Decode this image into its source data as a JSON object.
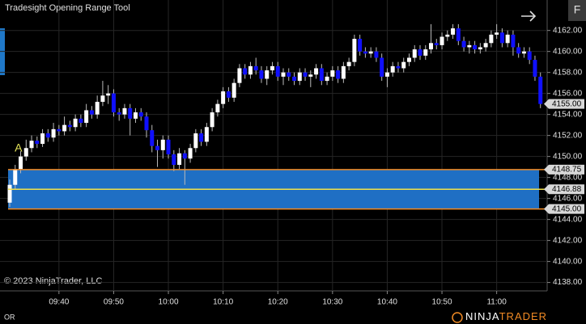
{
  "chart_data": {
    "type": "candlestick",
    "title": "Tradesight Opening Range Tool",
    "copyright": "© 2023 NinjaTrader, LLC",
    "indicator_label": "OR",
    "button_label": "F",
    "logo": {
      "left": "NINJA",
      "right": "TRADER"
    },
    "annotation": "A",
    "up_color": "#ffffff",
    "down_color": "#1010ff",
    "grid": true,
    "categories": [
      null,
      null,
      null,
      null,
      null,
      null,
      null,
      null,
      null,
      "09:40",
      null,
      null,
      null,
      null,
      null,
      null,
      null,
      null,
      null,
      "09:50",
      null,
      null,
      null,
      null,
      null,
      null,
      null,
      null,
      null,
      "10:00",
      null,
      null,
      null,
      null,
      null,
      null,
      null,
      null,
      null,
      "10:10",
      null,
      null,
      null,
      null,
      null,
      null,
      null,
      null,
      null,
      "10:20",
      null,
      null,
      null,
      null,
      null,
      null,
      null,
      null,
      null,
      "10:30",
      null,
      null,
      null,
      null,
      null,
      null,
      null,
      null,
      null,
      "10:40",
      null,
      null,
      null,
      null,
      null,
      null,
      null,
      null,
      null,
      "10:50",
      null,
      null,
      null,
      null,
      null,
      null,
      null,
      null,
      null,
      "11:00",
      null,
      null,
      null,
      null,
      null,
      null,
      null,
      null
    ],
    "open": [
      4145.6,
      4147.3,
      4148.8,
      4150.0,
      4150.8,
      4151.5,
      4151.2,
      4152.2,
      4151.8,
      4152.6,
      4152.4,
      4153.0,
      4152.8,
      4153.6,
      4153.2,
      4154.4,
      4154.0,
      4155.2,
      4155.8,
      4156.0,
      4154.2,
      4154.0,
      4154.6,
      4153.6,
      4154.2,
      4153.8,
      4152.5,
      4151.0,
      4150.6,
      4151.6,
      4150.2,
      4149.2,
      4150.3,
      4149.8,
      4150.8,
      4152.2,
      4151.4,
      4152.8,
      4154.2,
      4155.0,
      4156.2,
      4155.6,
      4157.0,
      4158.4,
      4157.8,
      4158.6,
      4158.2,
      4157.4,
      4158.2,
      4158.6,
      4157.6,
      4158.0,
      4157.6,
      4157.2,
      4158.0,
      4157.6,
      4157.8,
      4158.4,
      4157.2,
      4157.6,
      4158.2,
      4157.4,
      4158.6,
      4159.0,
      4161.2,
      4160.0,
      4159.8,
      4160.0,
      4159.4,
      4157.6,
      4158.0,
      4158.6,
      4158.4,
      4159.0,
      4159.4,
      4160.2,
      4159.6,
      4160.2,
      4160.8,
      4160.6,
      4161.4,
      4161.6,
      4162.2,
      4161.0,
      4160.4,
      4160.6,
      4160.2,
      4160.4,
      4160.8,
      4161.6,
      4161.8,
      4160.8,
      4161.6,
      4160.4,
      4159.8,
      4160.0,
      4159.2,
      4157.6
    ],
    "high": [
      4147.8,
      4149.2,
      4150.5,
      4151.6,
      4152.0,
      4151.9,
      4152.6,
      4152.6,
      4153.2,
      4153.0,
      4153.8,
      4153.4,
      4154.0,
      4154.0,
      4155.0,
      4154.8,
      4155.8,
      4157.2,
      4156.8,
      4156.4,
      4154.6,
      4155.0,
      4155.0,
      4154.6,
      4154.6,
      4154.2,
      4153.0,
      4151.6,
      4152.0,
      4152.0,
      4150.6,
      4150.8,
      4150.6,
      4151.2,
      4152.6,
      4152.6,
      4153.2,
      4154.6,
      4155.4,
      4156.6,
      4156.6,
      4157.4,
      4158.8,
      4158.8,
      4159.0,
      4159.4,
      4158.6,
      4158.6,
      4159.0,
      4159.0,
      4158.4,
      4158.4,
      4158.0,
      4158.4,
      4158.4,
      4158.2,
      4158.8,
      4158.8,
      4158.0,
      4158.6,
      4158.6,
      4159.0,
      4159.4,
      4161.6,
      4161.6,
      4160.4,
      4160.4,
      4160.4,
      4159.8,
      4158.4,
      4159.0,
      4159.0,
      4159.4,
      4159.8,
      4160.6,
      4160.6,
      4160.6,
      4162.6,
      4161.2,
      4161.8,
      4162.0,
      4162.6,
      4162.6,
      4161.4,
      4161.0,
      4161.0,
      4160.8,
      4161.2,
      4162.0,
      4162.6,
      4162.2,
      4162.0,
      4162.0,
      4160.8,
      4160.4,
      4160.4,
      4159.6,
      4158.0
    ],
    "low": [
      4145.2,
      4146.9,
      4148.4,
      4149.6,
      4150.4,
      4150.8,
      4150.9,
      4151.4,
      4151.4,
      4152.0,
      4152.0,
      4152.4,
      4152.4,
      4152.8,
      4152.8,
      4153.6,
      4153.6,
      4154.8,
      4155.0,
      4153.8,
      4153.4,
      4153.6,
      4152.0,
      4153.2,
      4153.4,
      4151.8,
      4150.4,
      4149.0,
      4149.8,
      4149.8,
      4148.6,
      4148.8,
      4147.3,
      4149.4,
      4150.4,
      4151.0,
      4151.0,
      4152.4,
      4153.8,
      4154.6,
      4155.2,
      4155.2,
      4156.6,
      4157.4,
      4157.4,
      4157.8,
      4157.0,
      4156.8,
      4157.8,
      4157.2,
      4156.8,
      4157.2,
      4156.8,
      4156.8,
      4157.2,
      4156.6,
      4157.4,
      4156.8,
      4156.8,
      4157.2,
      4157.0,
      4157.0,
      4158.2,
      4158.6,
      4159.6,
      4159.4,
      4159.4,
      4159.0,
      4157.2,
      4156.6,
      4157.6,
      4158.0,
      4158.0,
      4158.6,
      4159.0,
      4159.2,
      4159.2,
      4159.8,
      4160.2,
      4160.2,
      4161.0,
      4161.2,
      4160.6,
      4160.0,
      4159.8,
      4159.8,
      4159.8,
      4160.0,
      4160.4,
      4161.2,
      4160.4,
      4160.4,
      4159.6,
      4159.4,
      4159.4,
      4158.8,
      4157.2,
      4154.6
    ],
    "close": [
      4147.3,
      4148.8,
      4150.0,
      4150.8,
      4151.5,
      4151.2,
      4152.2,
      4151.8,
      4152.6,
      4152.4,
      4153.0,
      4152.8,
      4153.6,
      4153.2,
      4154.4,
      4154.0,
      4155.2,
      4155.8,
      4156.0,
      4154.2,
      4154.0,
      4154.6,
      4153.6,
      4154.2,
      4153.8,
      4152.5,
      4151.0,
      4150.6,
      4151.6,
      4150.2,
      4149.2,
      4150.3,
      4149.8,
      4150.8,
      4152.2,
      4151.4,
      4152.8,
      4154.2,
      4155.0,
      4156.2,
      4155.6,
      4157.0,
      4158.4,
      4157.8,
      4158.6,
      4158.2,
      4157.4,
      4158.2,
      4158.6,
      4157.6,
      4158.0,
      4157.6,
      4157.2,
      4158.0,
      4157.6,
      4157.8,
      4158.4,
      4157.2,
      4157.6,
      4158.2,
      4157.4,
      4158.6,
      4159.0,
      4161.2,
      4160.0,
      4159.8,
      4160.0,
      4159.4,
      4157.6,
      4158.0,
      4158.6,
      4158.4,
      4159.0,
      4159.4,
      4160.2,
      4159.6,
      4160.2,
      4160.8,
      4160.6,
      4161.4,
      4161.6,
      4162.2,
      4161.0,
      4160.4,
      4160.6,
      4160.2,
      4160.4,
      4160.8,
      4161.6,
      4161.8,
      4160.8,
      4161.6,
      4160.4,
      4159.8,
      4160.0,
      4159.2,
      4157.6,
      4155.0
    ],
    "opening_range": {
      "high": 4148.75,
      "mid": 4146.88,
      "low": 4145,
      "low_label": "4145.00",
      "fill": "#1f6fc4",
      "edge_color": "#f08a24",
      "mid_color": "#f2e14a"
    },
    "last_price": 4155,
    "last_price_label": "4155.00",
    "ylim": [
      4137.2,
      4164.9
    ],
    "yticks": [
      {
        "value": 4138,
        "label": "4138.00"
      },
      {
        "value": 4140,
        "label": "4140.00"
      },
      {
        "value": 4142,
        "label": "4142.00"
      },
      {
        "value": 4144,
        "label": "4144.00"
      },
      {
        "value": 4146,
        "label": "4146.00"
      },
      {
        "value": 4148,
        "label": "4148.00"
      },
      {
        "value": 4150,
        "label": "4150.00"
      },
      {
        "value": 4152,
        "label": "4152.00"
      },
      {
        "value": 4154,
        "label": "4154.00"
      },
      {
        "value": 4156,
        "label": "4156.00"
      },
      {
        "value": 4158,
        "label": "4158.00"
      },
      {
        "value": 4160,
        "label": "4160.00"
      },
      {
        "value": 4162,
        "label": "4162.00"
      }
    ]
  }
}
